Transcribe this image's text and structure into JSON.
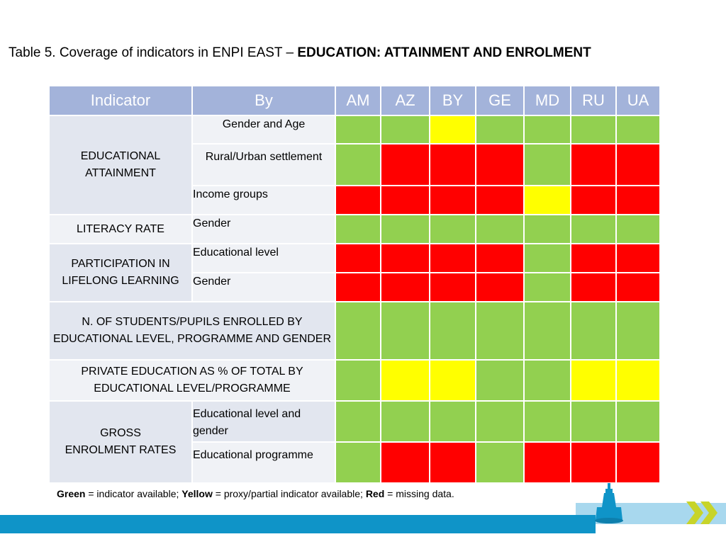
{
  "title": {
    "prefix": "Table 5. Coverage of indicators in ENPI EAST – ",
    "bold": "EDUCATION: ATTAINMENT AND ENROLMENT"
  },
  "table": {
    "headers": [
      "Indicator",
      "By",
      "AM",
      "AZ",
      "BY",
      "GE",
      "MD",
      "RU",
      "UA"
    ],
    "groups": [
      {
        "indicator": "EDUCATIONAL ATTAINMENT",
        "rows": [
          {
            "by": "Gender and Age",
            "status": [
              "green",
              "green",
              "yellow",
              "green",
              "green",
              "green",
              "green"
            ]
          },
          {
            "by": "Rural/Urban settlement",
            "status": [
              "green",
              "red",
              "red",
              "red",
              "green",
              "red",
              "red"
            ]
          },
          {
            "by": "Income groups",
            "status": [
              "red",
              "red",
              "red",
              "red",
              "yellow",
              "red",
              "red"
            ]
          }
        ]
      },
      {
        "indicator": "LITERACY RATE",
        "rows": [
          {
            "by": "Gender",
            "status": [
              "green",
              "green",
              "green",
              "green",
              "green",
              "green",
              "green"
            ]
          }
        ]
      },
      {
        "indicator": "PARTICIPATION IN LIFELONG LEARNING",
        "rows": [
          {
            "by": "Educational level",
            "status": [
              "red",
              "red",
              "red",
              "red",
              "green",
              "red",
              "red"
            ]
          },
          {
            "by": "Gender",
            "status": [
              "red",
              "red",
              "red",
              "red",
              "green",
              "red",
              "red"
            ]
          }
        ]
      },
      {
        "indicator": "N. OF STUDENTS/PUPILS ENROLLED BY EDUCATIONAL LEVEL, PROGRAMME AND GENDER",
        "rows": [
          {
            "by": "",
            "status": [
              "green",
              "green",
              "green",
              "green",
              "green",
              "green",
              "green"
            ]
          }
        ]
      },
      {
        "indicator": "PRIVATE EDUCATION AS % OF TOTAL BY EDUCATIONAL LEVEL/PROGRAMME",
        "rows": [
          {
            "by": "",
            "status": [
              "green",
              "yellow",
              "yellow",
              "green",
              "green",
              "yellow",
              "yellow"
            ]
          }
        ]
      },
      {
        "indicator": "GROSS ENROLMENT RATES",
        "rows": [
          {
            "by": "Educational level and gender",
            "status": [
              "green",
              "green",
              "green",
              "green",
              "green",
              "green",
              "green"
            ]
          },
          {
            "by": "Educational programme",
            "status": [
              "green",
              "red",
              "red",
              "green",
              "red",
              "red",
              "red"
            ]
          }
        ]
      }
    ]
  },
  "legend": {
    "green_label": "Green",
    "green_text": " = indicator available; ",
    "yellow_label": "Yellow",
    "yellow_text": " = proxy/partial indicator available; ",
    "red_label": "Red",
    "red_text": " = missing data."
  },
  "colors": {
    "green": "#92d050",
    "yellow": "#ffff00",
    "red": "#ff0000",
    "header": "#a3b3da",
    "accent_bar": "#0f94c8"
  },
  "icons": [
    "double-chevron-icon",
    "tower-logo-icon"
  ]
}
